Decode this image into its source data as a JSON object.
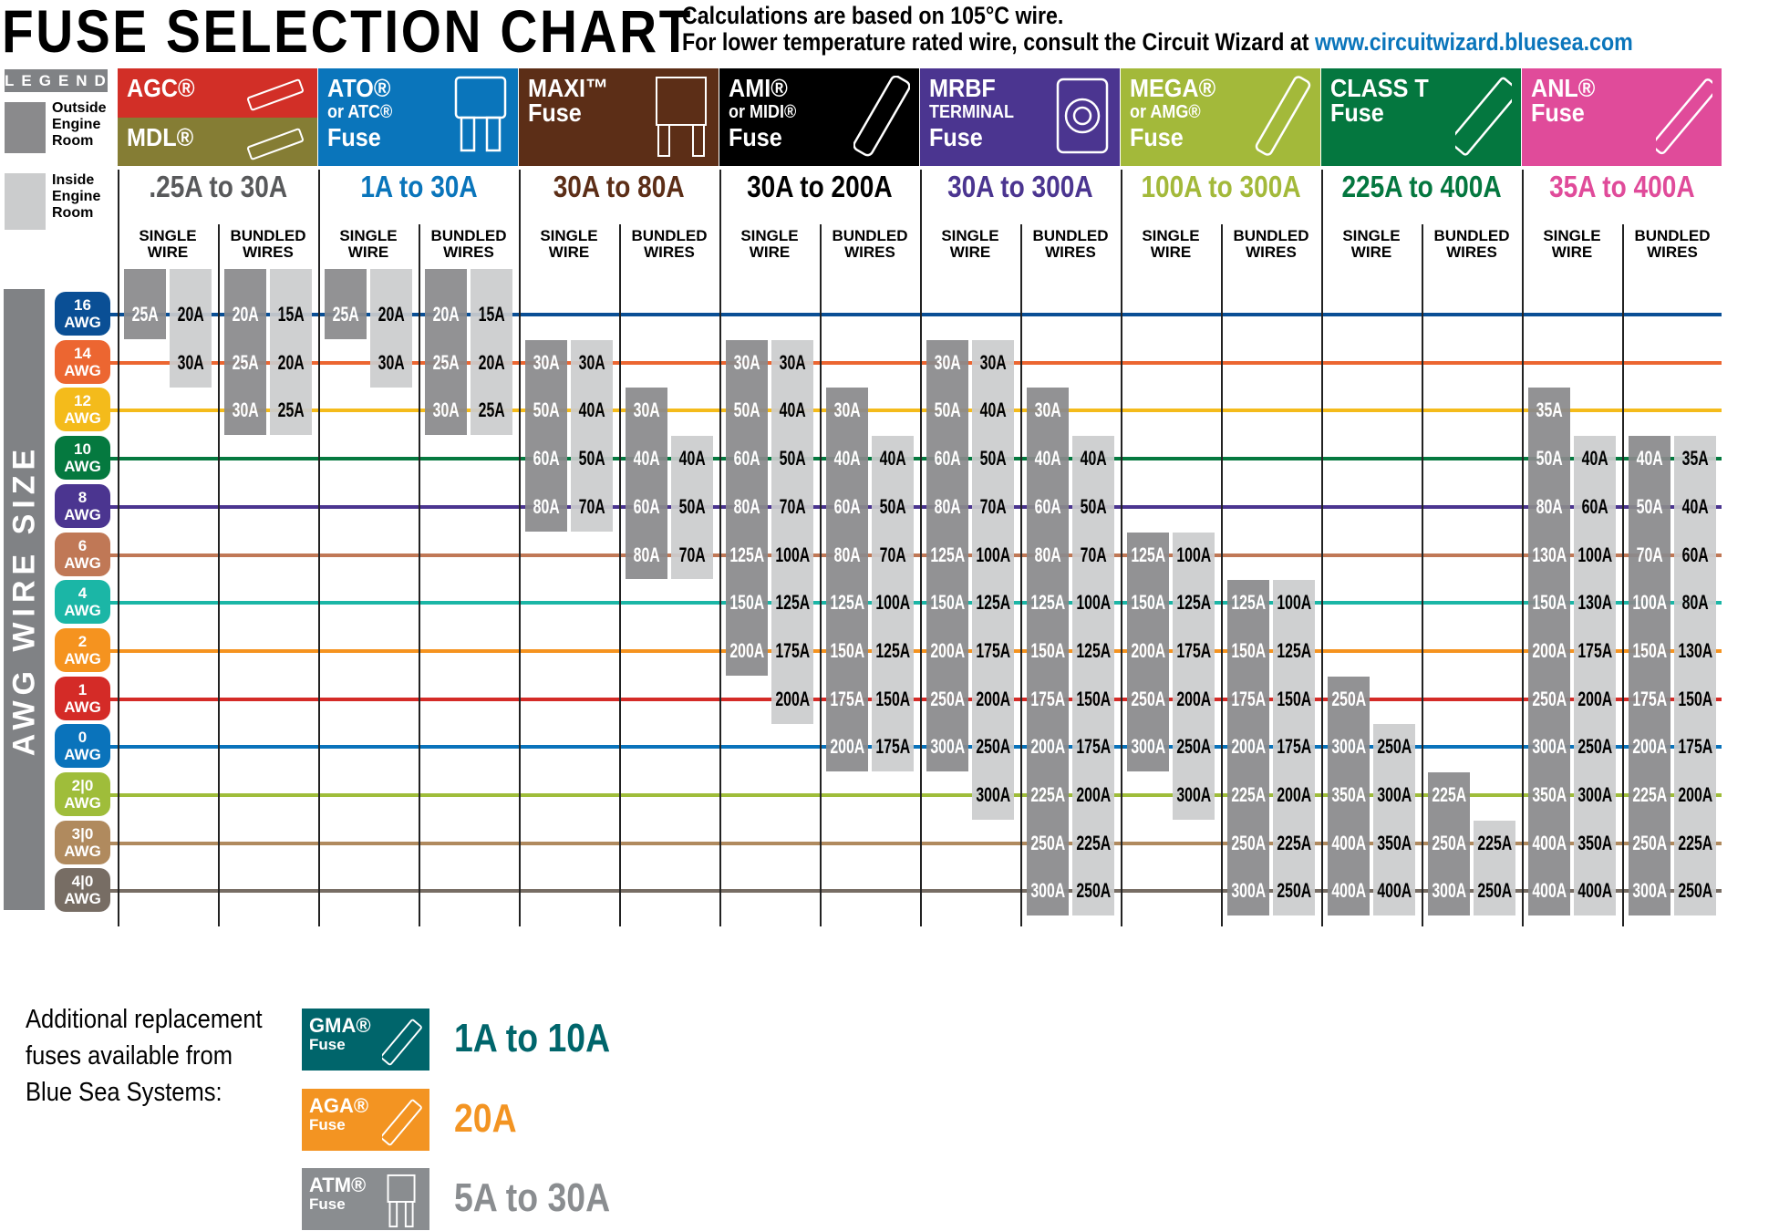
{
  "header": {
    "title": "FUSE SELECTION CHART",
    "subtitle_line1": "Calculations are based on 105°C wire.",
    "subtitle_line2": "For lower temperature rated wire, consult the Circuit Wizard at ",
    "link": "www.circuitwizard.bluesea.com"
  },
  "legend": {
    "title": "LEGEND",
    "outside": "Outside Engine Room",
    "inside": "Inside Engine Room",
    "outside_color": "#8a8a8c",
    "inside_color": "#cbcccd"
  },
  "axis_label": "AWG WIRE SIZE",
  "wire_labels": {
    "single": "SINGLE WIRE",
    "bundled": "BUNDLED WIRES"
  },
  "chart_data": {
    "type": "table",
    "title": "FUSE SELECTION CHART",
    "rows": [
      {
        "gauge": "16",
        "unit": "AWG",
        "color": "#0a4f95"
      },
      {
        "gauge": "14",
        "unit": "AWG",
        "color": "#ec6631"
      },
      {
        "gauge": "12",
        "unit": "AWG",
        "color": "#f4bb1b"
      },
      {
        "gauge": "10",
        "unit": "AWG",
        "color": "#05793f"
      },
      {
        "gauge": "8",
        "unit": "AWG",
        "color": "#4b3590"
      },
      {
        "gauge": "6",
        "unit": "AWG",
        "color": "#c07856"
      },
      {
        "gauge": "4",
        "unit": "AWG",
        "color": "#1bb6a6"
      },
      {
        "gauge": "2",
        "unit": "AWG",
        "color": "#f5931f"
      },
      {
        "gauge": "1",
        "unit": "AWG",
        "color": "#d42b27"
      },
      {
        "gauge": "0",
        "unit": "AWG",
        "color": "#0a73bb"
      },
      {
        "gauge": "2|0",
        "unit": "AWG",
        "color": "#9fbd3a"
      },
      {
        "gauge": "3|0",
        "unit": "AWG",
        "color": "#b08a5e"
      },
      {
        "gauge": "4|0",
        "unit": "AWG",
        "color": "#776d64"
      }
    ],
    "fuses": [
      {
        "lines": [
          "AGC®"
        ],
        "lines2": [
          "MDL®"
        ],
        "color": "#d22f27",
        "color2": "#857d34",
        "range": ".25A to 30A",
        "range_color": "#58595b",
        "icon": "glass-tube-fuse-icon",
        "single": {
          "outside": {
            "start": 0,
            "values": [
              "25A"
            ]
          },
          "inside": {
            "start": 0,
            "values": [
              "20A",
              "30A"
            ]
          }
        },
        "bundled": {
          "outside": {
            "start": 0,
            "values": [
              "20A",
              "25A",
              "30A"
            ]
          },
          "inside": {
            "start": 0,
            "values": [
              "15A",
              "20A",
              "25A"
            ]
          }
        }
      },
      {
        "lines": [
          "ATO®",
          "or ATC®",
          "Fuse"
        ],
        "color": "#0a75bb",
        "range": "1A to 30A",
        "range_color": "#0a75bb",
        "icon": "blade-fuse-icon",
        "single": {
          "outside": {
            "start": 0,
            "values": [
              "25A"
            ]
          },
          "inside": {
            "start": 0,
            "values": [
              "20A",
              "30A"
            ]
          }
        },
        "bundled": {
          "outside": {
            "start": 0,
            "values": [
              "20A",
              "25A",
              "30A"
            ]
          },
          "inside": {
            "start": 0,
            "values": [
              "15A",
              "20A",
              "25A"
            ]
          }
        }
      },
      {
        "lines": [
          "MAXI™",
          "Fuse"
        ],
        "color": "#5c2e17",
        "range": "30A to 80A",
        "range_color": "#5c2e17",
        "icon": "maxi-fuse-icon",
        "single": {
          "outside": {
            "start": 1,
            "values": [
              "30A",
              "50A",
              "60A",
              "80A"
            ]
          },
          "inside": {
            "start": 1,
            "values": [
              "30A",
              "40A",
              "50A",
              "70A"
            ]
          }
        },
        "bundled": {
          "outside": {
            "start": 2,
            "values": [
              "30A",
              "40A",
              "60A",
              "80A"
            ]
          },
          "inside": {
            "start": 3,
            "values": [
              "40A",
              "50A",
              "70A"
            ]
          }
        }
      },
      {
        "lines": [
          "AMI®",
          "or MIDI®",
          "Fuse"
        ],
        "color": "#000000",
        "range": "30A to 200A",
        "range_color": "#000000",
        "icon": "bolt-down-fuse-icon",
        "single": {
          "outside": {
            "start": 1,
            "values": [
              "30A",
              "50A",
              "60A",
              "80A",
              "125A",
              "150A",
              "200A"
            ]
          },
          "inside": {
            "start": 1,
            "values": [
              "30A",
              "40A",
              "50A",
              "70A",
              "100A",
              "125A",
              "175A",
              "200A"
            ]
          }
        },
        "bundled": {
          "outside": {
            "start": 2,
            "values": [
              "30A",
              "40A",
              "60A",
              "80A",
              "125A",
              "150A",
              "175A",
              "200A"
            ]
          },
          "inside": {
            "start": 3,
            "values": [
              "40A",
              "50A",
              "70A",
              "100A",
              "125A",
              "150A",
              "175A"
            ]
          }
        }
      },
      {
        "lines": [
          "MRBF",
          "TERMINAL",
          "Fuse"
        ],
        "color": "#4b3590",
        "range": "30A to 300A",
        "range_color": "#4b3590",
        "icon": "terminal-fuse-icon",
        "single": {
          "outside": {
            "start": 1,
            "values": [
              "30A",
              "50A",
              "60A",
              "80A",
              "125A",
              "150A",
              "200A",
              "250A",
              "300A"
            ]
          },
          "inside": {
            "start": 1,
            "values": [
              "30A",
              "40A",
              "50A",
              "70A",
              "100A",
              "125A",
              "175A",
              "200A",
              "250A",
              "300A"
            ]
          }
        },
        "bundled": {
          "outside": {
            "start": 2,
            "values": [
              "30A",
              "40A",
              "60A",
              "80A",
              "125A",
              "150A",
              "175A",
              "200A",
              "225A",
              "250A",
              "300A"
            ]
          },
          "inside": {
            "start": 3,
            "values": [
              "40A",
              "50A",
              "70A",
              "100A",
              "125A",
              "150A",
              "175A",
              "200A",
              "225A",
              "250A"
            ]
          }
        }
      },
      {
        "lines": [
          "MEGA®",
          "or AMG®",
          "Fuse"
        ],
        "color": "#a3b93a",
        "range": "100A to 300A",
        "range_color": "#a3b93a",
        "icon": "mega-fuse-icon",
        "single": {
          "outside": {
            "start": 5,
            "values": [
              "125A",
              "150A",
              "200A",
              "250A",
              "300A"
            ]
          },
          "inside": {
            "start": 5,
            "values": [
              "100A",
              "125A",
              "175A",
              "200A",
              "250A",
              "300A"
            ]
          }
        },
        "bundled": {
          "outside": {
            "start": 6,
            "values": [
              "125A",
              "150A",
              "175A",
              "200A",
              "225A",
              "250A",
              "300A"
            ]
          },
          "inside": {
            "start": 6,
            "values": [
              "100A",
              "125A",
              "150A",
              "175A",
              "200A",
              "225A",
              "250A"
            ]
          }
        }
      },
      {
        "lines": [
          "CLASS T",
          "Fuse"
        ],
        "color": "#04773f",
        "range": "225A to 400A",
        "range_color": "#04773f",
        "icon": "class-t-fuse-icon",
        "single": {
          "outside": {
            "start": 8,
            "values": [
              "250A",
              "300A",
              "350A",
              "400A",
              "400A"
            ]
          },
          "inside": {
            "start": 9,
            "values": [
              "250A",
              "300A",
              "350A",
              "400A"
            ]
          }
        },
        "bundled": {
          "outside": {
            "start": 10,
            "values": [
              "225A",
              "250A",
              "300A"
            ]
          },
          "inside": {
            "start": 11,
            "values": [
              "225A",
              "250A"
            ]
          }
        }
      },
      {
        "lines": [
          "ANL®",
          "Fuse"
        ],
        "color": "#e04b9a",
        "range": "35A to 400A",
        "range_color": "#e04b9a",
        "icon": "anl-fuse-icon",
        "single": {
          "outside": {
            "start": 2,
            "values": [
              "35A",
              "50A",
              "80A",
              "130A",
              "150A",
              "200A",
              "250A",
              "300A",
              "350A",
              "400A",
              "400A"
            ]
          },
          "inside": {
            "start": 3,
            "values": [
              "40A",
              "60A",
              "100A",
              "130A",
              "175A",
              "200A",
              "250A",
              "300A",
              "350A",
              "400A"
            ]
          }
        },
        "bundled": {
          "outside": {
            "start": 3,
            "values": [
              "40A",
              "50A",
              "70A",
              "100A",
              "150A",
              "175A",
              "200A",
              "225A",
              "250A",
              "300A"
            ]
          },
          "inside": {
            "start": 3,
            "values": [
              "35A",
              "40A",
              "60A",
              "80A",
              "130A",
              "150A",
              "175A",
              "200A",
              "225A",
              "250A"
            ]
          }
        }
      }
    ]
  },
  "footer": {
    "text": [
      "Additional replacement",
      "fuses available from",
      "Blue Sea Systems:"
    ],
    "items": [
      {
        "name": "GMA®",
        "sub": "Fuse",
        "range": "1A to 10A",
        "color": "#00656b"
      },
      {
        "name": "AGA®",
        "sub": "Fuse",
        "range": "20A",
        "color": "#f39422"
      },
      {
        "name": "ATM®",
        "sub": "Fuse",
        "range": "5A to 30A",
        "color": "#8a8d90"
      }
    ]
  }
}
